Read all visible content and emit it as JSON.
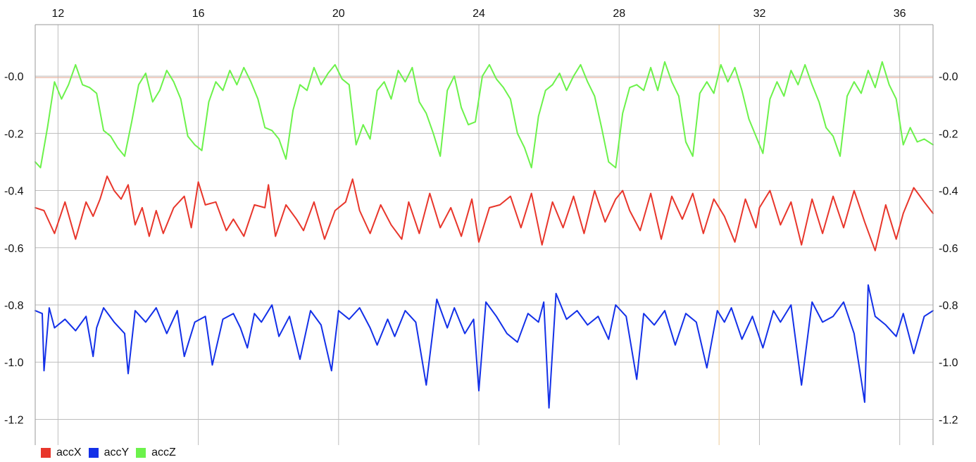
{
  "chart_data": {
    "type": "line",
    "title": "",
    "xlabel": "",
    "ylabel": "",
    "xlim": [
      11.35,
      36.95
    ],
    "ylim": [
      -1.29,
      0.18
    ],
    "x_ticks": [
      12,
      16,
      20,
      24,
      28,
      32,
      36
    ],
    "x_tick_labels": [
      "12",
      "16",
      "20",
      "24",
      "28",
      "32",
      "36"
    ],
    "y_ticks": [
      0.0,
      -0.2,
      -0.4,
      -0.6,
      -0.8,
      -1.0,
      -1.2
    ],
    "y_tick_labels": [
      "-0.0",
      "-0.2",
      "-0.4",
      "-0.6",
      "-0.8",
      "-1.0",
      "-1.2"
    ],
    "grid": true,
    "y_axis_sides": "left and right",
    "x_axis_position": "top",
    "legend_position": "bottom-left",
    "reference_lines": [
      {
        "orientation": "horizontal",
        "y": -0.005,
        "color": "#e8b4a0"
      },
      {
        "orientation": "vertical",
        "x": 30.85,
        "color": "#f0d2a8"
      }
    ],
    "series": [
      {
        "name": "accX",
        "color": "#e8362b",
        "x": [
          11.35,
          11.6,
          11.9,
          12.2,
          12.5,
          12.8,
          13.0,
          13.2,
          13.4,
          13.6,
          13.8,
          14.0,
          14.2,
          14.4,
          14.6,
          14.8,
          15.0,
          15.3,
          15.6,
          15.8,
          16.0,
          16.2,
          16.5,
          16.8,
          17.0,
          17.3,
          17.6,
          17.9,
          18.0,
          18.2,
          18.5,
          18.8,
          19.0,
          19.3,
          19.6,
          19.9,
          20.2,
          20.4,
          20.6,
          20.9,
          21.2,
          21.5,
          21.8,
          22.0,
          22.3,
          22.6,
          22.9,
          23.2,
          23.5,
          23.8,
          24.0,
          24.3,
          24.6,
          24.9,
          25.2,
          25.5,
          25.8,
          26.1,
          26.4,
          26.7,
          27.0,
          27.3,
          27.6,
          27.9,
          28.1,
          28.3,
          28.6,
          28.9,
          29.2,
          29.5,
          29.8,
          30.1,
          30.4,
          30.7,
          31.0,
          31.3,
          31.6,
          31.9,
          32.0,
          32.3,
          32.6,
          32.9,
          33.2,
          33.5,
          33.8,
          34.1,
          34.4,
          34.7,
          35.0,
          35.3,
          35.6,
          35.9,
          36.1,
          36.4,
          36.7,
          36.95
        ],
        "values": [
          -0.46,
          -0.47,
          -0.55,
          -0.44,
          -0.57,
          -0.44,
          -0.49,
          -0.43,
          -0.35,
          -0.4,
          -0.43,
          -0.38,
          -0.52,
          -0.46,
          -0.56,
          -0.47,
          -0.55,
          -0.46,
          -0.42,
          -0.53,
          -0.37,
          -0.45,
          -0.44,
          -0.54,
          -0.5,
          -0.56,
          -0.45,
          -0.46,
          -0.38,
          -0.56,
          -0.45,
          -0.5,
          -0.54,
          -0.44,
          -0.57,
          -0.47,
          -0.44,
          -0.36,
          -0.47,
          -0.55,
          -0.45,
          -0.52,
          -0.57,
          -0.44,
          -0.55,
          -0.41,
          -0.53,
          -0.46,
          -0.56,
          -0.43,
          -0.58,
          -0.46,
          -0.45,
          -0.42,
          -0.53,
          -0.41,
          -0.59,
          -0.44,
          -0.53,
          -0.42,
          -0.55,
          -0.4,
          -0.51,
          -0.43,
          -0.4,
          -0.47,
          -0.54,
          -0.41,
          -0.57,
          -0.42,
          -0.5,
          -0.41,
          -0.55,
          -0.43,
          -0.49,
          -0.58,
          -0.43,
          -0.53,
          -0.46,
          -0.4,
          -0.52,
          -0.44,
          -0.59,
          -0.43,
          -0.55,
          -0.42,
          -0.53,
          -0.4,
          -0.51,
          -0.61,
          -0.45,
          -0.57,
          -0.48,
          -0.39,
          -0.44,
          -0.48
        ]
      },
      {
        "name": "accY",
        "color": "#1330e8",
        "x": [
          11.35,
          11.55,
          11.6,
          11.75,
          11.9,
          12.2,
          12.5,
          12.8,
          13.0,
          13.1,
          13.3,
          13.6,
          13.9,
          14.0,
          14.2,
          14.5,
          14.8,
          15.1,
          15.4,
          15.6,
          15.9,
          16.2,
          16.4,
          16.7,
          17.0,
          17.2,
          17.4,
          17.6,
          17.8,
          18.1,
          18.3,
          18.6,
          18.9,
          19.2,
          19.5,
          19.8,
          20.0,
          20.3,
          20.6,
          20.9,
          21.1,
          21.4,
          21.6,
          21.9,
          22.2,
          22.5,
          22.8,
          23.1,
          23.3,
          23.6,
          23.85,
          24.0,
          24.2,
          24.5,
          24.8,
          25.1,
          25.4,
          25.7,
          25.85,
          26.0,
          26.2,
          26.5,
          26.8,
          27.1,
          27.4,
          27.7,
          27.9,
          28.2,
          28.5,
          28.7,
          29.0,
          29.3,
          29.6,
          29.9,
          30.2,
          30.5,
          30.8,
          31.0,
          31.2,
          31.5,
          31.8,
          32.1,
          32.4,
          32.6,
          32.9,
          33.2,
          33.5,
          33.8,
          34.1,
          34.4,
          34.7,
          35.0,
          35.1,
          35.3,
          35.6,
          35.9,
          36.1,
          36.4,
          36.7,
          36.95
        ],
        "values": [
          -0.82,
          -0.83,
          -1.03,
          -0.81,
          -0.88,
          -0.85,
          -0.89,
          -0.84,
          -0.98,
          -0.88,
          -0.81,
          -0.86,
          -0.9,
          -1.04,
          -0.82,
          -0.86,
          -0.81,
          -0.9,
          -0.82,
          -0.98,
          -0.86,
          -0.84,
          -1.01,
          -0.85,
          -0.83,
          -0.88,
          -0.95,
          -0.83,
          -0.86,
          -0.8,
          -0.91,
          -0.84,
          -0.99,
          -0.82,
          -0.87,
          -1.03,
          -0.82,
          -0.85,
          -0.81,
          -0.88,
          -0.94,
          -0.85,
          -0.91,
          -0.82,
          -0.86,
          -1.08,
          -0.78,
          -0.88,
          -0.81,
          -0.9,
          -0.85,
          -1.1,
          -0.79,
          -0.84,
          -0.9,
          -0.93,
          -0.83,
          -0.86,
          -0.79,
          -1.16,
          -0.76,
          -0.85,
          -0.82,
          -0.87,
          -0.84,
          -0.92,
          -0.8,
          -0.84,
          -1.06,
          -0.83,
          -0.87,
          -0.82,
          -0.94,
          -0.83,
          -0.86,
          -1.02,
          -0.82,
          -0.86,
          -0.81,
          -0.92,
          -0.84,
          -0.95,
          -0.82,
          -0.86,
          -0.8,
          -1.08,
          -0.79,
          -0.86,
          -0.84,
          -0.79,
          -0.9,
          -1.14,
          -0.73,
          -0.84,
          -0.87,
          -0.91,
          -0.83,
          -0.97,
          -0.84,
          -0.82
        ]
      },
      {
        "name": "accZ",
        "color": "#6cf24b",
        "x": [
          11.35,
          11.5,
          11.7,
          11.9,
          12.1,
          12.3,
          12.5,
          12.7,
          12.9,
          13.1,
          13.3,
          13.5,
          13.7,
          13.9,
          14.1,
          14.3,
          14.5,
          14.7,
          14.9,
          15.1,
          15.3,
          15.5,
          15.7,
          15.9,
          16.1,
          16.3,
          16.5,
          16.7,
          16.9,
          17.1,
          17.3,
          17.5,
          17.7,
          17.9,
          18.1,
          18.3,
          18.5,
          18.7,
          18.9,
          19.1,
          19.3,
          19.5,
          19.7,
          19.9,
          20.1,
          20.3,
          20.5,
          20.7,
          20.9,
          21.1,
          21.3,
          21.5,
          21.7,
          21.9,
          22.1,
          22.3,
          22.5,
          22.7,
          22.9,
          23.1,
          23.3,
          23.5,
          23.7,
          23.9,
          24.1,
          24.3,
          24.5,
          24.7,
          24.9,
          25.1,
          25.3,
          25.5,
          25.7,
          25.9,
          26.1,
          26.3,
          26.5,
          26.7,
          26.9,
          27.1,
          27.3,
          27.5,
          27.7,
          27.9,
          28.1,
          28.3,
          28.5,
          28.7,
          28.9,
          29.1,
          29.3,
          29.5,
          29.7,
          29.9,
          30.1,
          30.3,
          30.5,
          30.7,
          30.9,
          31.1,
          31.3,
          31.5,
          31.7,
          31.9,
          32.1,
          32.3,
          32.5,
          32.7,
          32.9,
          33.1,
          33.3,
          33.5,
          33.7,
          33.9,
          34.1,
          34.3,
          34.5,
          34.7,
          34.9,
          35.1,
          35.3,
          35.5,
          35.7,
          35.9,
          36.1,
          36.3,
          36.5,
          36.7,
          36.95
        ],
        "values": [
          -0.3,
          -0.32,
          -0.18,
          -0.02,
          -0.08,
          -0.03,
          0.04,
          -0.03,
          -0.04,
          -0.06,
          -0.19,
          -0.21,
          -0.25,
          -0.28,
          -0.16,
          -0.03,
          0.01,
          -0.09,
          -0.05,
          0.02,
          -0.02,
          -0.08,
          -0.21,
          -0.24,
          -0.26,
          -0.09,
          -0.02,
          -0.05,
          0.02,
          -0.03,
          0.03,
          -0.02,
          -0.08,
          -0.18,
          -0.19,
          -0.22,
          -0.29,
          -0.12,
          -0.03,
          -0.05,
          0.03,
          -0.03,
          0.01,
          0.04,
          -0.01,
          -0.03,
          -0.24,
          -0.17,
          -0.22,
          -0.05,
          -0.02,
          -0.08,
          0.02,
          -0.02,
          0.03,
          -0.09,
          -0.13,
          -0.2,
          -0.28,
          -0.05,
          0.0,
          -0.11,
          -0.17,
          -0.16,
          0.0,
          0.04,
          -0.01,
          -0.04,
          -0.08,
          -0.2,
          -0.25,
          -0.32,
          -0.14,
          -0.05,
          -0.03,
          0.01,
          -0.05,
          0.0,
          0.04,
          -0.02,
          -0.07,
          -0.18,
          -0.3,
          -0.32,
          -0.13,
          -0.04,
          -0.03,
          -0.05,
          0.03,
          -0.05,
          0.05,
          -0.02,
          -0.07,
          -0.23,
          -0.28,
          -0.06,
          -0.02,
          -0.06,
          0.04,
          -0.02,
          0.03,
          -0.05,
          -0.15,
          -0.21,
          -0.27,
          -0.08,
          -0.02,
          -0.07,
          0.02,
          -0.03,
          0.04,
          -0.03,
          -0.09,
          -0.18,
          -0.21,
          -0.28,
          -0.07,
          -0.02,
          -0.06,
          0.02,
          -0.04,
          0.05,
          -0.03,
          -0.08,
          -0.24,
          -0.18,
          -0.23,
          -0.22,
          -0.24
        ]
      }
    ]
  }
}
